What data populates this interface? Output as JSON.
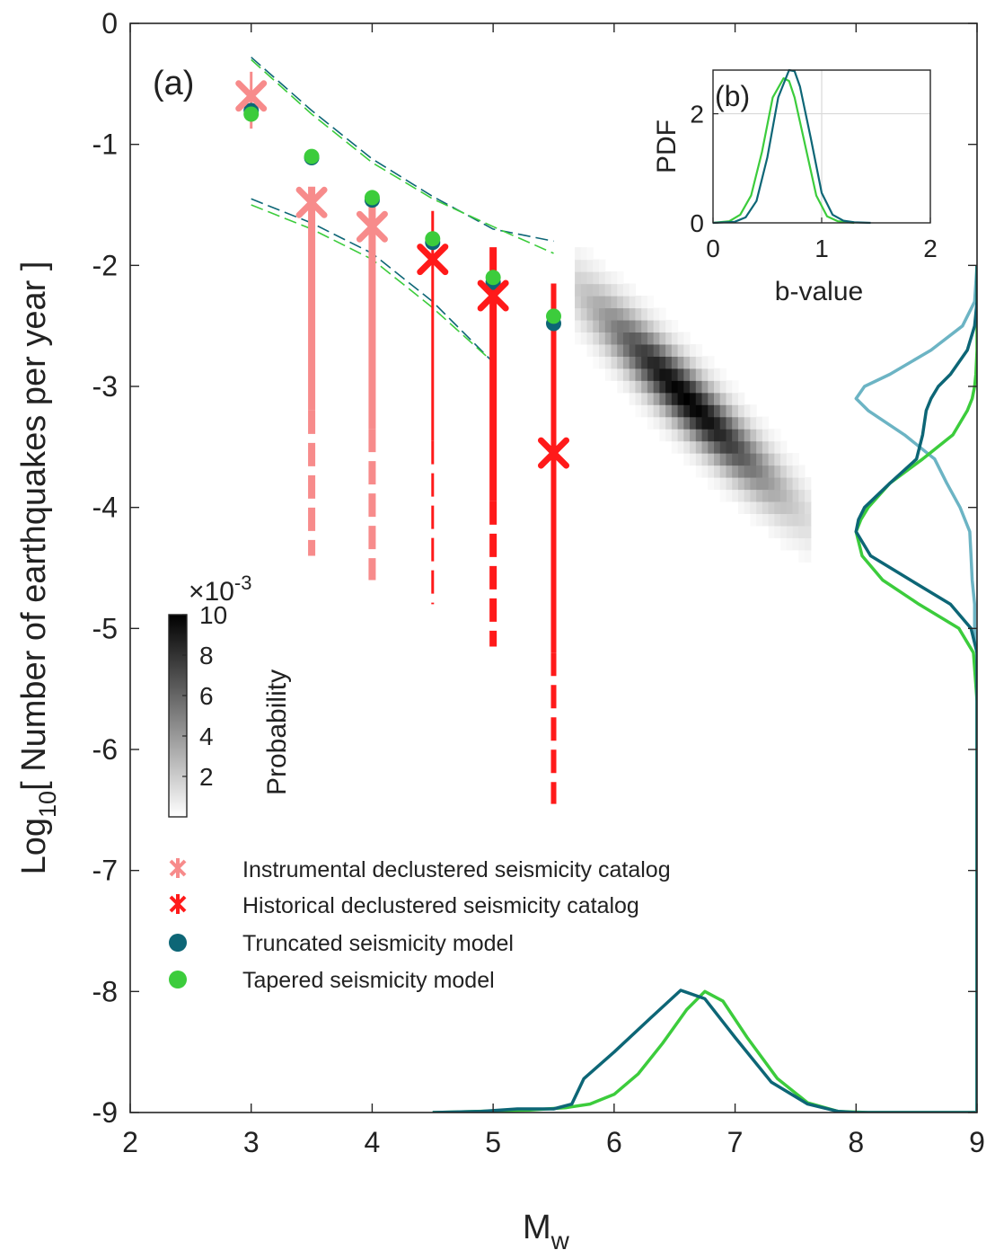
{
  "figure": {
    "colors": {
      "instrumental": "#f78b8b",
      "historical": "#ff1a1a",
      "truncated": "#0d6676",
      "tapered": "#3ccc3c",
      "instrumental_pdf": "#6cb4c4"
    }
  },
  "chart_data": [
    {
      "id": "main",
      "type": "scatter",
      "panel_label": "(a)",
      "xlabel": "M",
      "xlabel_sub": "w",
      "ylabel_pre": "Log",
      "ylabel_sub": "10",
      "ylabel_post": "[ Number of earthquakes per year ]",
      "xlim": [
        2,
        9
      ],
      "ylim": [
        -9,
        0
      ],
      "xticks": [
        2,
        3,
        4,
        5,
        6,
        7,
        8,
        9
      ],
      "yticks": [
        0,
        -1,
        -2,
        -3,
        -4,
        -5,
        -6,
        -7,
        -8,
        -9
      ],
      "instrumental": {
        "name": "Instrumental declustered seismicity catalog",
        "points": [
          {
            "x": 3.0,
            "y": -0.6,
            "solid_low": -0.87,
            "solid_high": -0.4,
            "dash_low": -0.87
          },
          {
            "x": 3.5,
            "y": -1.48,
            "solid_low": -3.2,
            "solid_high": -1.35,
            "dash_low": -4.4
          },
          {
            "x": 4.0,
            "y": -1.68,
            "solid_low": -3.35,
            "solid_high": -1.4,
            "dash_low": -4.6
          }
        ]
      },
      "historical": {
        "name": "Historical declustered seismicity catalog",
        "points": [
          {
            "x": 4.5,
            "y": -1.95,
            "solid_low": -3.45,
            "solid_high": -1.55,
            "dash_low": -4.8
          },
          {
            "x": 5.0,
            "y": -2.25,
            "solid_low": -3.95,
            "solid_high": -1.85,
            "dash_low": -5.15
          },
          {
            "x": 5.5,
            "y": -3.55,
            "solid_low": -5.2,
            "solid_high": -2.15,
            "dash_low": -6.45
          }
        ]
      },
      "truncated": {
        "name": "Truncated seismicity model",
        "x": [
          3.0,
          3.5,
          4.0,
          4.5,
          5.0,
          5.5
        ],
        "y": [
          -0.72,
          -1.11,
          -1.46,
          -1.81,
          -2.14,
          -2.48
        ]
      },
      "tapered": {
        "name": "Tapered seismicity model",
        "x": [
          3.0,
          3.5,
          4.0,
          4.5,
          5.0,
          5.5
        ],
        "y": [
          -0.75,
          -1.1,
          -1.44,
          -1.78,
          -2.1,
          -2.42
        ]
      },
      "truncated_bounds": {
        "upper": {
          "x": [
            3.0,
            3.5,
            4.0,
            4.5,
            5.0,
            5.5
          ],
          "y": [
            -0.28,
            -0.72,
            -1.12,
            -1.43,
            -1.7,
            -1.8
          ]
        },
        "lower": {
          "x": [
            3.0,
            3.5,
            4.0,
            4.5,
            5.0
          ],
          "y": [
            -1.45,
            -1.65,
            -1.9,
            -2.3,
            -2.8
          ]
        }
      },
      "tapered_bounds": {
        "upper": {
          "x": [
            3.0,
            3.5,
            4.0,
            4.5,
            5.0,
            5.5
          ],
          "y": [
            -0.3,
            -0.75,
            -1.15,
            -1.45,
            -1.68,
            -1.9
          ]
        },
        "lower": {
          "x": [
            3.0,
            3.5,
            4.0,
            4.5,
            5.0
          ],
          "y": [
            -1.5,
            -1.7,
            -1.95,
            -2.35,
            -2.8
          ]
        }
      },
      "heatmap": {
        "center_x": 6.6,
        "center_y": -3.1,
        "slope": -1.05,
        "spread_major": 0.72,
        "spread_minor": 0.13,
        "mw_range": [
          5.7,
          7.6
        ],
        "rate_range": [
          -5.1,
          -1.8
        ]
      },
      "colorbar": {
        "label": "Probability",
        "multiplier": "×10",
        "multiplier_exp": "-3",
        "ticks": [
          2,
          4,
          6,
          8,
          10
        ],
        "range": [
          0,
          10
        ]
      },
      "mmax_pdf": {
        "truncated": {
          "x": [
            4.5,
            4.9,
            5.2,
            5.5,
            5.65,
            5.75,
            6.0,
            6.3,
            6.55,
            6.75,
            7.0,
            7.3,
            7.6,
            7.85,
            8.0,
            8.3,
            9.0
          ],
          "y": [
            -9.0,
            -8.99,
            -8.97,
            -8.97,
            -8.93,
            -8.72,
            -8.5,
            -8.22,
            -7.99,
            -8.06,
            -8.38,
            -8.75,
            -8.93,
            -8.99,
            -9.0,
            -9.0,
            -9.0
          ]
        },
        "tapered": {
          "x": [
            4.5,
            5.3,
            5.6,
            5.8,
            6.0,
            6.2,
            6.4,
            6.6,
            6.75,
            6.9,
            7.1,
            7.35,
            7.6,
            7.85,
            8.1,
            9.0
          ],
          "y": [
            -9.0,
            -8.98,
            -8.96,
            -8.93,
            -8.85,
            -8.68,
            -8.43,
            -8.15,
            -8.0,
            -8.08,
            -8.38,
            -8.72,
            -8.92,
            -8.99,
            -9.0,
            -9.0
          ]
        }
      },
      "rate_pdf": {
        "y": [
          -2.0,
          -2.3,
          -2.5,
          -2.7,
          -2.9,
          -3.0,
          -3.1,
          -3.2,
          -3.4,
          -3.6,
          -3.8,
          -4.0,
          -4.1,
          -4.2,
          -4.4,
          -4.6,
          -4.8,
          -5.0,
          -5.2,
          -5.6,
          -6.0,
          -7.0,
          -8.0,
          -9.0
        ],
        "truncated": [
          0.0,
          0.0,
          0.02,
          0.08,
          0.22,
          0.32,
          0.38,
          0.42,
          0.45,
          0.5,
          0.72,
          0.93,
          0.98,
          1.0,
          0.88,
          0.55,
          0.22,
          0.05,
          0.0,
          0.0,
          0.0,
          0.0,
          0.0,
          0.0
        ],
        "tapered": [
          0.0,
          0.0,
          0.0,
          0.0,
          0.01,
          0.02,
          0.04,
          0.08,
          0.2,
          0.45,
          0.72,
          0.9,
          0.96,
          1.0,
          0.95,
          0.78,
          0.48,
          0.15,
          0.03,
          0.0,
          0.0,
          0.0,
          0.0,
          0.0
        ],
        "instrumental": [
          0.0,
          0.02,
          0.12,
          0.38,
          0.72,
          0.93,
          1.0,
          0.9,
          0.6,
          0.35,
          0.25,
          0.14,
          0.1,
          0.06,
          0.05,
          0.04,
          0.02,
          0.02,
          0.0,
          0.0,
          0.0,
          0.0,
          0.0,
          0.0
        ]
      }
    },
    {
      "id": "inset",
      "type": "line",
      "panel_label": "(b)",
      "xlabel": "b-value",
      "ylabel": "PDF",
      "xlim": [
        0,
        2
      ],
      "ylim": [
        0,
        2.8
      ],
      "xticks": [
        0,
        1,
        2
      ],
      "yticks": [
        0,
        2
      ],
      "grid": true,
      "series": [
        {
          "name": "Truncated",
          "color": "#0d6676",
          "x": [
            0.0,
            0.2,
            0.3,
            0.4,
            0.5,
            0.6,
            0.7,
            0.75,
            0.8,
            0.9,
            1.0,
            1.1,
            1.2,
            1.3,
            1.45
          ],
          "y": [
            0.0,
            0.02,
            0.1,
            0.4,
            1.2,
            2.3,
            2.8,
            2.78,
            2.5,
            1.55,
            0.55,
            0.15,
            0.04,
            0.01,
            0.0
          ]
        },
        {
          "name": "Tapered",
          "color": "#3ccc3c",
          "x": [
            0.0,
            0.15,
            0.25,
            0.35,
            0.45,
            0.55,
            0.65,
            0.7,
            0.75,
            0.85,
            0.95,
            1.05,
            1.15,
            1.3
          ],
          "y": [
            0.0,
            0.03,
            0.15,
            0.5,
            1.3,
            2.3,
            2.65,
            2.6,
            2.3,
            1.4,
            0.5,
            0.12,
            0.03,
            0.0
          ]
        }
      ]
    }
  ],
  "legend": {
    "items": [
      {
        "key": "instrumental",
        "label": "Instrumental declustered seismicity catalog"
      },
      {
        "key": "historical",
        "label": "Historical declustered seismicity catalog"
      },
      {
        "key": "truncated",
        "label": "Truncated seismicity model"
      },
      {
        "key": "tapered",
        "label": "Tapered seismicity model"
      }
    ]
  }
}
